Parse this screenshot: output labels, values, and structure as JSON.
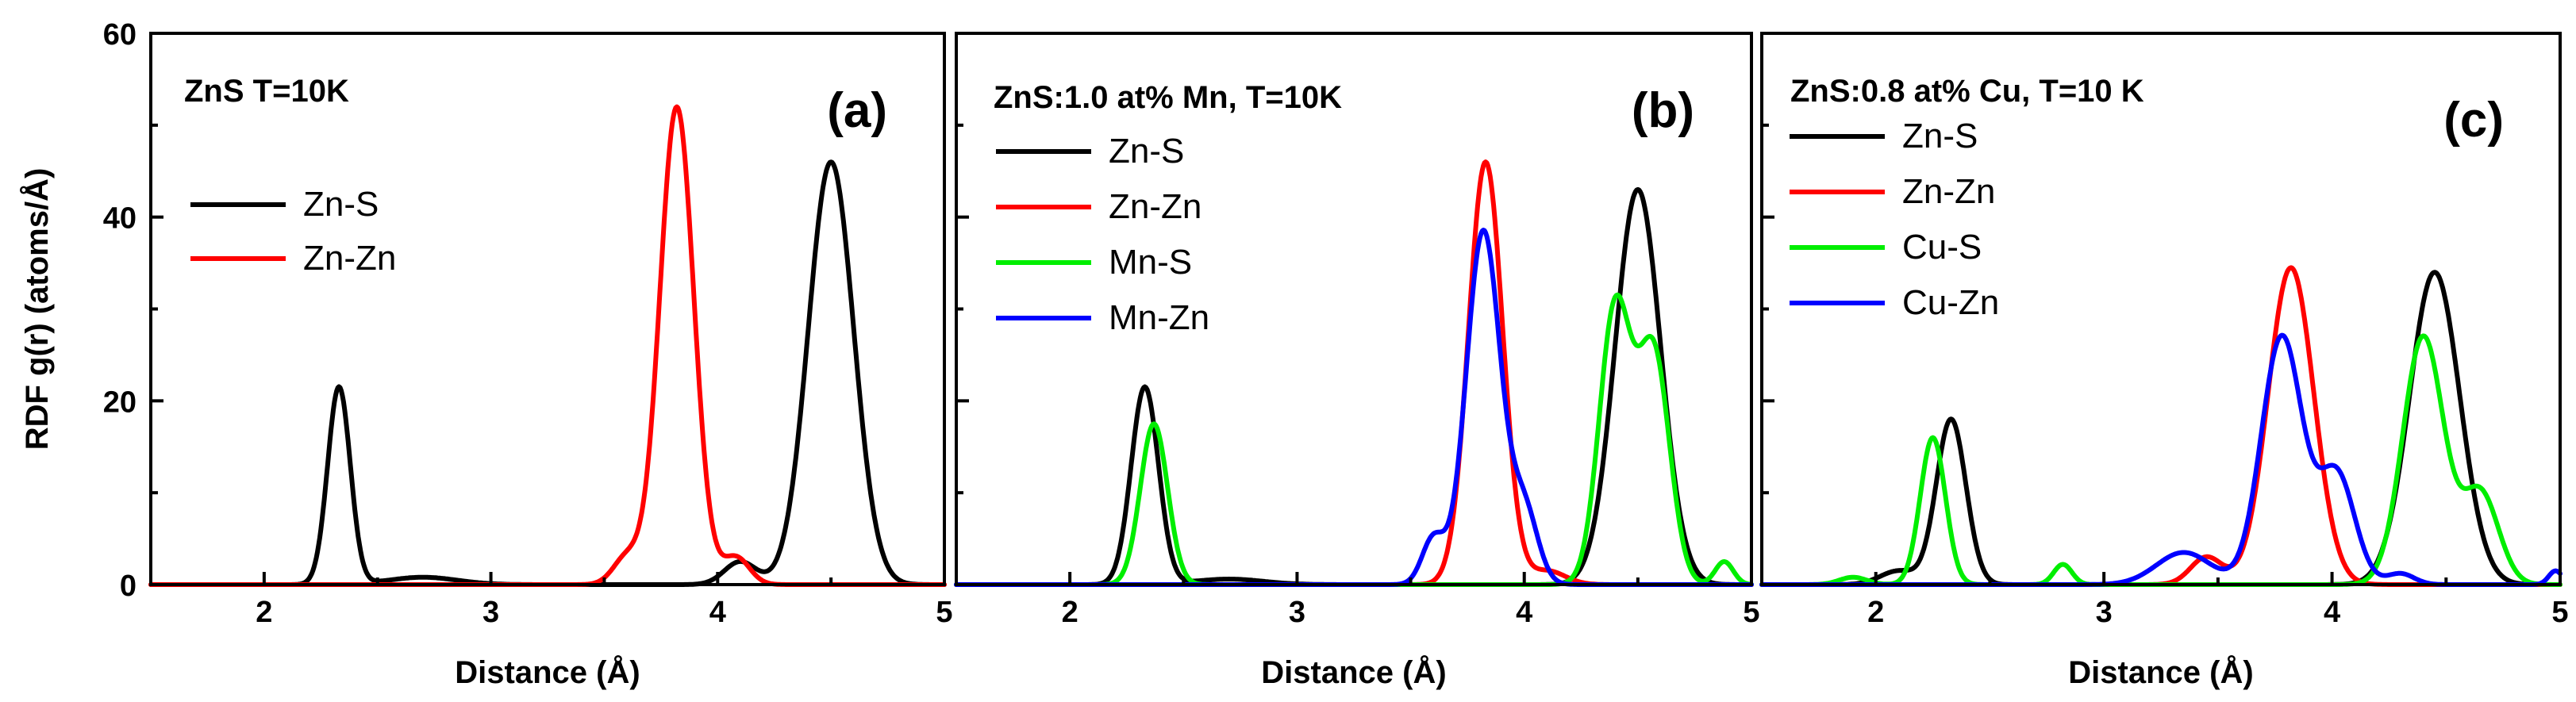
{
  "chart_data": [
    {
      "type": "line",
      "title": "ZnS T=10K",
      "tag": "(a)",
      "xlabel": "Distance (Å)",
      "ylabel": "RDF g(r) (atoms/Å)",
      "xlim": [
        1.5,
        5
      ],
      "ylim": [
        0,
        60
      ],
      "xticks": [
        2,
        3,
        4,
        5
      ],
      "yticks": [
        0,
        20,
        40,
        60
      ],
      "legend_position": "center-left",
      "series": [
        {
          "name": "Zn-S",
          "color": "#000000",
          "peaks": [
            {
              "center": 2.33,
              "height": 21.5,
              "width": 0.05
            },
            {
              "center": 4.5,
              "height": 46,
              "width": 0.1
            },
            {
              "center": 4.1,
              "height": 2.5,
              "width": 0.07
            },
            {
              "center": 2.7,
              "height": 0.8,
              "width": 0.15
            }
          ]
        },
        {
          "name": "Zn-Zn",
          "color": "#ff0000",
          "peaks": [
            {
              "center": 3.82,
              "height": 52,
              "width": 0.075
            },
            {
              "center": 3.6,
              "height": 3,
              "width": 0.06
            },
            {
              "center": 4.08,
              "height": 3,
              "width": 0.06
            }
          ]
        }
      ]
    },
    {
      "type": "line",
      "title": "ZnS:1.0 at% Mn, T=10K",
      "tag": "(b)",
      "xlabel": "Distance (Å)",
      "ylabel": "",
      "xlim": [
        1.5,
        5
      ],
      "ylim": [
        0,
        60
      ],
      "xticks": [
        2,
        3,
        4,
        5
      ],
      "yticks": [
        0,
        20,
        40,
        60
      ],
      "legend_position": "upper-left",
      "series": [
        {
          "name": "Zn-S",
          "color": "#000000",
          "peaks": [
            {
              "center": 2.33,
              "height": 21.5,
              "width": 0.06
            },
            {
              "center": 4.5,
              "height": 43,
              "width": 0.1
            },
            {
              "center": 2.7,
              "height": 0.6,
              "width": 0.15
            }
          ]
        },
        {
          "name": "Zn-Zn",
          "color": "#ff0000",
          "peaks": [
            {
              "center": 3.83,
              "height": 46,
              "width": 0.075
            },
            {
              "center": 4.1,
              "height": 1.5,
              "width": 0.08
            }
          ]
        },
        {
          "name": "Mn-S",
          "color": "#00ee00",
          "peaks": [
            {
              "center": 2.37,
              "height": 17.5,
              "width": 0.06
            },
            {
              "center": 4.4,
              "height": 30,
              "width": 0.07
            },
            {
              "center": 4.57,
              "height": 25,
              "width": 0.07
            },
            {
              "center": 4.88,
              "height": 2.5,
              "width": 0.04
            }
          ]
        },
        {
          "name": "Mn-Zn",
          "color": "#0000ff",
          "peaks": [
            {
              "center": 3.82,
              "height": 38.5,
              "width": 0.075
            },
            {
              "center": 3.6,
              "height": 5,
              "width": 0.05
            },
            {
              "center": 4.0,
              "height": 8,
              "width": 0.06
            }
          ]
        }
      ]
    },
    {
      "type": "line",
      "title": "ZnS:0.8 at% Cu,   T=10 K",
      "tag": "(c)",
      "xlabel": "Distance (Å)",
      "ylabel": "",
      "xlim": [
        1.5,
        5
      ],
      "ylim": [
        0,
        60
      ],
      "xticks": [
        2,
        3,
        4,
        5
      ],
      "yticks": [
        0,
        20,
        40,
        60
      ],
      "legend_position": "upper-left",
      "series": [
        {
          "name": "Zn-S",
          "color": "#000000",
          "peaks": [
            {
              "center": 2.33,
              "height": 18,
              "width": 0.065
            },
            {
              "center": 4.45,
              "height": 34,
              "width": 0.11
            },
            {
              "center": 2.1,
              "height": 1.5,
              "width": 0.08
            }
          ]
        },
        {
          "name": "Zn-Zn",
          "color": "#ff0000",
          "peaks": [
            {
              "center": 3.82,
              "height": 34.5,
              "width": 0.1
            },
            {
              "center": 3.45,
              "height": 3,
              "width": 0.07
            }
          ]
        },
        {
          "name": "Cu-S",
          "color": "#00ee00",
          "peaks": [
            {
              "center": 2.25,
              "height": 16,
              "width": 0.055
            },
            {
              "center": 2.82,
              "height": 2.2,
              "width": 0.04
            },
            {
              "center": 1.9,
              "height": 0.8,
              "width": 0.06
            },
            {
              "center": 4.4,
              "height": 27,
              "width": 0.09
            },
            {
              "center": 4.65,
              "height": 10,
              "width": 0.08
            }
          ]
        },
        {
          "name": "Cu-Zn",
          "color": "#0000ff",
          "peaks": [
            {
              "center": 3.78,
              "height": 27,
              "width": 0.09
            },
            {
              "center": 4.02,
              "height": 12,
              "width": 0.08
            },
            {
              "center": 3.35,
              "height": 3.5,
              "width": 0.12
            },
            {
              "center": 4.3,
              "height": 1.2,
              "width": 0.06
            },
            {
              "center": 4.98,
              "height": 1.5,
              "width": 0.03
            }
          ]
        }
      ]
    }
  ]
}
